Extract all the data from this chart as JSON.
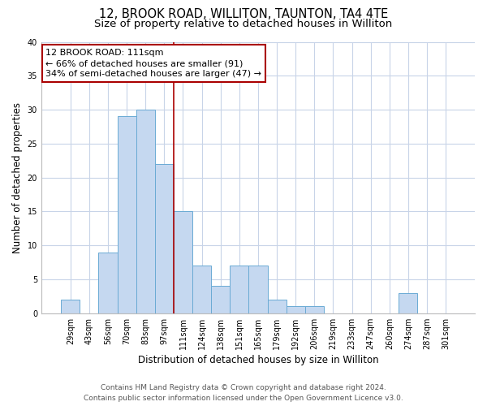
{
  "title": "12, BROOK ROAD, WILLITON, TAUNTON, TA4 4TE",
  "subtitle": "Size of property relative to detached houses in Williton",
  "xlabel": "Distribution of detached houses by size in Williton",
  "ylabel": "Number of detached properties",
  "bin_labels": [
    "29sqm",
    "43sqm",
    "56sqm",
    "70sqm",
    "83sqm",
    "97sqm",
    "111sqm",
    "124sqm",
    "138sqm",
    "151sqm",
    "165sqm",
    "179sqm",
    "192sqm",
    "206sqm",
    "219sqm",
    "233sqm",
    "247sqm",
    "260sqm",
    "274sqm",
    "287sqm",
    "301sqm"
  ],
  "bar_heights": [
    2,
    0,
    9,
    29,
    30,
    22,
    15,
    7,
    4,
    7,
    7,
    2,
    1,
    1,
    0,
    0,
    0,
    0,
    3,
    0,
    0
  ],
  "bar_color": "#c5d8f0",
  "bar_edge_color": "#6aaad4",
  "highlight_bar_index": 6,
  "highlight_line_color": "#aa0000",
  "annotation_title": "12 BROOK ROAD: 111sqm",
  "annotation_line1": "← 66% of detached houses are smaller (91)",
  "annotation_line2": "34% of semi-detached houses are larger (47) →",
  "annotation_box_color": "#ffffff",
  "annotation_box_edge_color": "#aa0000",
  "ylim": [
    0,
    40
  ],
  "yticks": [
    0,
    5,
    10,
    15,
    20,
    25,
    30,
    35,
    40
  ],
  "footer_line1": "Contains HM Land Registry data © Crown copyright and database right 2024.",
  "footer_line2": "Contains public sector information licensed under the Open Government Licence v3.0.",
  "background_color": "#ffffff",
  "grid_color": "#c8d4e8",
  "title_fontsize": 10.5,
  "subtitle_fontsize": 9.5,
  "axis_label_fontsize": 8.5,
  "tick_fontsize": 7,
  "annotation_fontsize": 8,
  "footer_fontsize": 6.5
}
